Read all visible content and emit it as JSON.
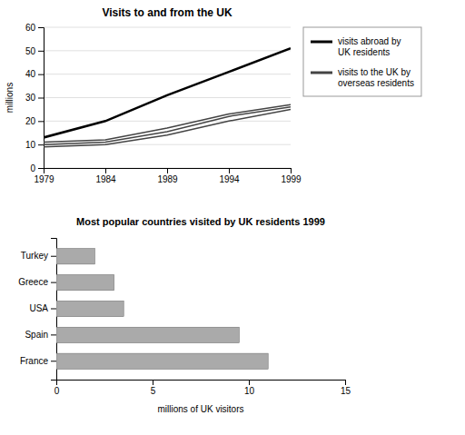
{
  "chart_data": [
    {
      "type": "line",
      "title": "Visits to and from the UK",
      "x": [
        1979,
        1984,
        1989,
        1994,
        1999
      ],
      "series": [
        {
          "name": "visits abroad by\nUK residents",
          "color": "#000000",
          "values": [
            13,
            20,
            31,
            41,
            51
          ]
        },
        {
          "name": "visits to the UK by\noverseas residents",
          "color": "#444444",
          "values": [
            11,
            12,
            17,
            23,
            27
          ]
        },
        {
          "name": "visits to the UK by\noverseas residents",
          "color": "#444444",
          "values": [
            10,
            11,
            15.5,
            22,
            26
          ]
        },
        {
          "name": "visits to the UK by\noverseas residents",
          "color": "#444444",
          "values": [
            9,
            10,
            14,
            20,
            25
          ]
        }
      ],
      "ylabel": "millions",
      "xlim": [
        1979,
        1999
      ],
      "ylim": [
        0,
        60
      ],
      "xticks": [
        1979,
        1984,
        1989,
        1994,
        1999
      ],
      "yticks": [
        0,
        10,
        20,
        30,
        40,
        50,
        60
      ],
      "grid": true,
      "legend": "right"
    },
    {
      "type": "bar",
      "orientation": "horizontal",
      "title": "Most popular countries visited by UK residents 1999",
      "categories": [
        "France",
        "Spain",
        "USA",
        "Greece",
        "Turkey"
      ],
      "values": [
        11.0,
        9.5,
        3.5,
        3.0,
        2.0
      ],
      "color": "#aaaaaa",
      "xlabel": "millions of UK visitors",
      "xlim": [
        0,
        15
      ],
      "xticks": [
        0,
        5,
        10,
        15
      ]
    }
  ]
}
